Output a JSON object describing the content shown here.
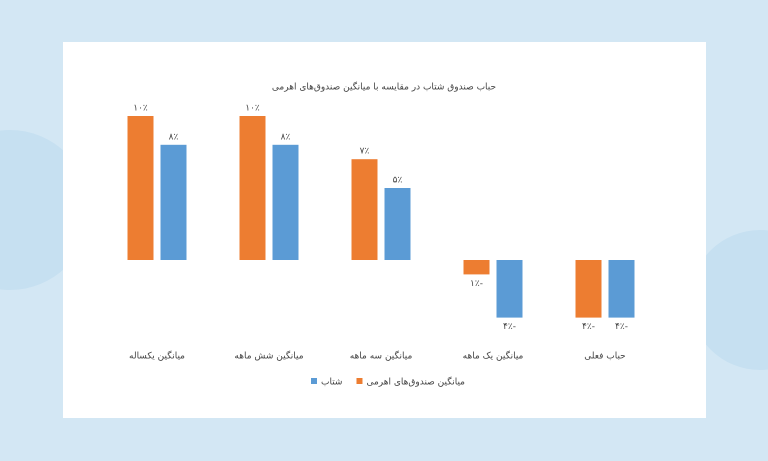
{
  "chart_data": {
    "type": "bar",
    "title": "حباب صندوق شتاب در مقایسه با میانگین صندوق‌های اهرمی",
    "categories": [
      "میانگین یکساله",
      "میانگین شش ماهه",
      "میانگین سه ماهه",
      "میانگین یک ماهه",
      "حباب فعلی"
    ],
    "series": [
      {
        "name": "میانگین صندوق‌های اهرمی",
        "color": "#ed7d31",
        "values": [
          10,
          10,
          7,
          -1,
          -4
        ],
        "value_labels": [
          "۱۰٪",
          "۱۰٪",
          "۷٪",
          "۱٪-",
          "۴٪-"
        ]
      },
      {
        "name": "شتاب",
        "color": "#5b9bd5",
        "values": [
          8,
          8,
          5,
          -4,
          -4
        ],
        "value_labels": [
          "۸٪",
          "۸٪",
          "۵٪",
          "۴٪-",
          "۴٪-"
        ]
      }
    ]
  }
}
